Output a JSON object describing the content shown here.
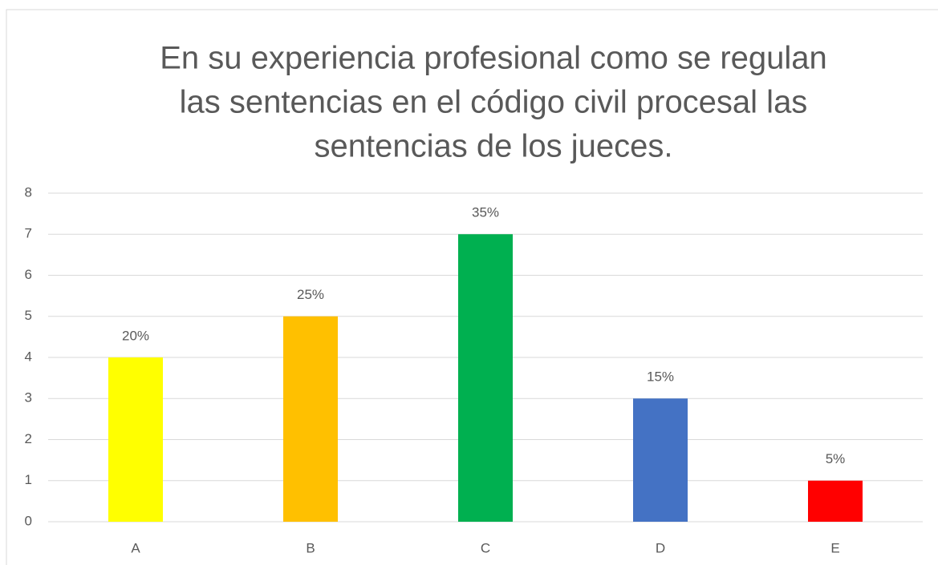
{
  "chart_data": {
    "type": "bar",
    "title": [
      "En su experiencia profesional como se regulan",
      "las sentencias en el código civil procesal las",
      "sentencias de los jueces."
    ],
    "categories": [
      "A",
      "B",
      "C",
      "D",
      "E"
    ],
    "values": [
      4,
      5,
      7,
      3,
      1
    ],
    "value_labels": [
      "20%",
      "25%",
      "35%",
      "15%",
      "5%"
    ],
    "colors": [
      "#ffff00",
      "#ffc000",
      "#00b050",
      "#4472c4",
      "#ff0000"
    ],
    "ylim": [
      0,
      8
    ],
    "yticks": [
      0,
      1,
      2,
      3,
      4,
      5,
      6,
      7,
      8
    ],
    "grid": true
  }
}
